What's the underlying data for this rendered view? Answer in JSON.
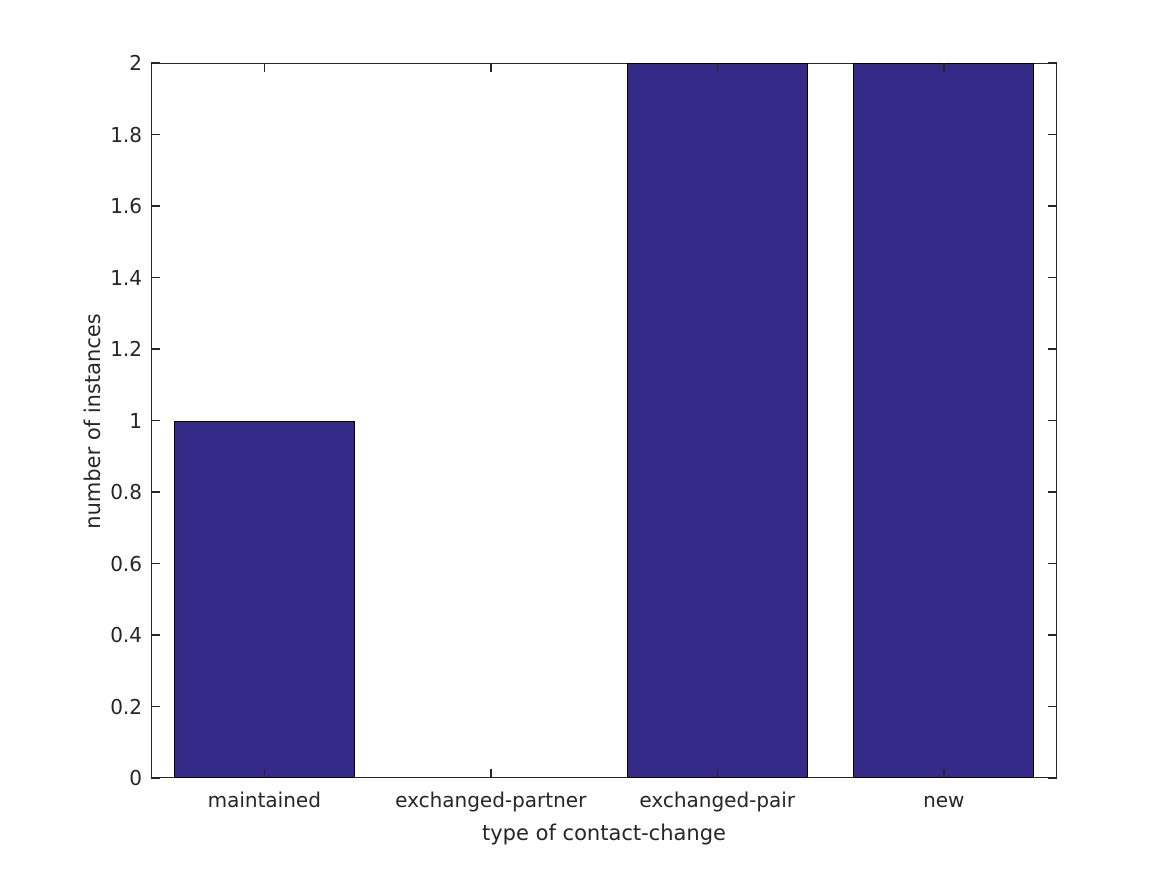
{
  "chart_data": {
    "type": "bar",
    "categories": [
      "maintained",
      "exchanged-partner",
      "exchanged-pair",
      "new"
    ],
    "values": [
      1,
      0,
      2,
      2
    ],
    "title": "",
    "xlabel": "type of contact-change",
    "ylabel": "number of instances",
    "ylim": [
      0,
      2
    ],
    "yticks": [
      0,
      0.2,
      0.4,
      0.6,
      0.8,
      1,
      1.2,
      1.4,
      1.6,
      1.8,
      2
    ],
    "ytick_labels": [
      "0",
      "0.2",
      "0.4",
      "0.6",
      "0.8",
      "1",
      "1.2",
      "1.4",
      "1.6",
      "1.8",
      "2"
    ],
    "bar_width_fraction": 0.8,
    "grid": false,
    "legend": null,
    "colors": {
      "bar_fill": "#352A87",
      "bar_edge": "#000000",
      "axis": "#262626",
      "text": "#262626",
      "background": "#FFFFFF"
    }
  }
}
